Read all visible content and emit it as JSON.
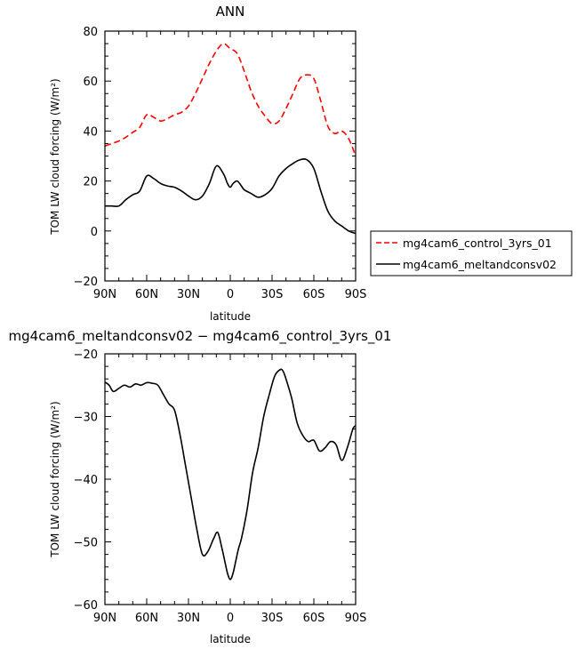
{
  "chart_data": [
    {
      "type": "line",
      "title": "ANN",
      "xlabel": "latitude",
      "ylabel": "TOM LW cloud forcing (W/m²)",
      "x_tick_labels": [
        "90N",
        "60N",
        "30N",
        "0",
        "30S",
        "60S",
        "90S"
      ],
      "y_tick_labels": [
        "−20",
        "0",
        "20",
        "40",
        "60",
        "80"
      ],
      "xlim": [
        90,
        -90
      ],
      "ylim": [
        -20,
        80
      ],
      "legend": "right",
      "series": [
        {
          "name": "mg4cam6_control_3yrs_01",
          "color": "#ff0000",
          "style": "dashed",
          "x": [
            90,
            85,
            80,
            75,
            70,
            65,
            60,
            55,
            50,
            45,
            40,
            35,
            30,
            25,
            20,
            15,
            10,
            5,
            0,
            -5,
            -10,
            -15,
            -20,
            -25,
            -30,
            -35,
            -40,
            -45,
            -50,
            -55,
            -60,
            -65,
            -70,
            -75,
            -80,
            -85,
            -90
          ],
          "y": [
            34,
            35,
            36,
            37.5,
            39.5,
            41.5,
            46.5,
            45.5,
            44,
            45,
            46.5,
            47.5,
            50,
            55,
            61,
            67,
            72,
            75,
            73,
            71,
            64,
            56,
            50,
            46,
            43,
            44,
            49,
            55,
            61,
            62.5,
            61,
            52,
            42,
            39,
            40,
            37,
            30
          ]
        },
        {
          "name": "mg4cam6_meltandconsv02",
          "color": "#000000",
          "style": "solid",
          "x": [
            90,
            85,
            80,
            75,
            70,
            65,
            60,
            55,
            50,
            45,
            40,
            35,
            30,
            25,
            20,
            15,
            10,
            5,
            2,
            0,
            -2,
            -5,
            -8,
            -10,
            -15,
            -20,
            -25,
            -30,
            -35,
            -40,
            -45,
            -50,
            -55,
            -60,
            -65,
            -70,
            -75,
            -80,
            -85,
            -90
          ],
          "y": [
            10,
            10,
            10,
            12.5,
            14.5,
            16,
            22,
            21,
            19,
            18,
            17.5,
            16,
            14,
            12.5,
            14,
            19,
            26,
            23,
            19,
            17.5,
            19,
            20,
            18,
            16.5,
            15,
            13.5,
            14.5,
            17,
            22,
            25,
            27,
            28.5,
            28.5,
            25,
            16,
            8,
            4,
            2,
            0,
            -1
          ]
        }
      ]
    },
    {
      "type": "line",
      "title": "mg4cam6_meltandconsv02 − mg4cam6_control_3yrs_01",
      "xlabel": "latitude",
      "ylabel": "TOM LW cloud forcing (W/m²)",
      "x_tick_labels": [
        "90N",
        "60N",
        "30N",
        "0",
        "30S",
        "60S",
        "90S"
      ],
      "y_tick_labels": [
        "−60",
        "−50",
        "−40",
        "−30",
        "−20"
      ],
      "xlim": [
        90,
        -90
      ],
      "ylim": [
        -60,
        -20
      ],
      "series": [
        {
          "color": "#000000",
          "style": "solid",
          "x": [
            90,
            87,
            84,
            80,
            76,
            72,
            68,
            64,
            60,
            56,
            52,
            48,
            44,
            40,
            36,
            32,
            28,
            24,
            20,
            16,
            12,
            9,
            6,
            4,
            2,
            0,
            -2,
            -4,
            -6,
            -8,
            -12,
            -16,
            -20,
            -24,
            -28,
            -32,
            -36,
            -38,
            -40,
            -44,
            -48,
            -52,
            -56,
            -60,
            -64,
            -68,
            -72,
            -76,
            -80,
            -84,
            -88,
            -90
          ],
          "y": [
            -24.5,
            -25,
            -26,
            -25.5,
            -25,
            -25.3,
            -24.8,
            -25,
            -24.6,
            -24.7,
            -25,
            -26.5,
            -28,
            -29,
            -33,
            -38,
            -43,
            -48,
            -52,
            -51.5,
            -49.5,
            -48.5,
            -51,
            -53,
            -55,
            -56,
            -55,
            -53,
            -51,
            -49.5,
            -45,
            -39,
            -35,
            -30,
            -26.5,
            -23.5,
            -22.5,
            -22.8,
            -24,
            -27,
            -31,
            -33,
            -34,
            -33.8,
            -35.5,
            -35,
            -34,
            -34.5,
            -37,
            -35,
            -32,
            -31.5
          ]
        }
      ]
    }
  ]
}
